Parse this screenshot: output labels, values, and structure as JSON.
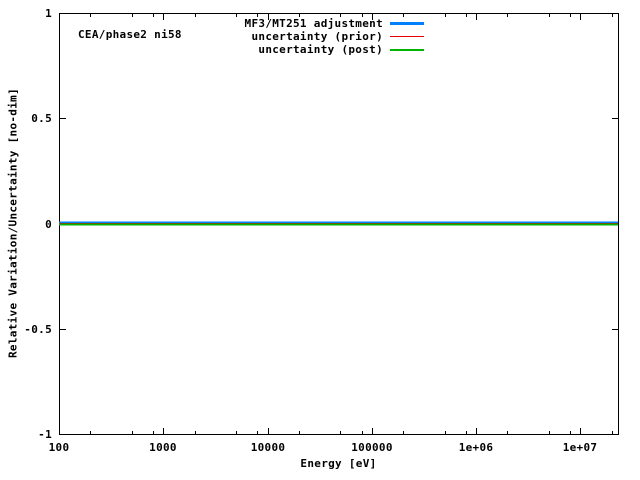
{
  "chart_data": {
    "type": "line",
    "plot_label": "CEA/phase2 ni58",
    "xlabel": "Energy [eV]",
    "ylabel": "Relative Variation/Uncertainty [no-dim]",
    "x_scale": "log",
    "y_scale": "linear",
    "xlim": [
      100,
      23000000
    ],
    "ylim": [
      -1,
      1
    ],
    "x_major_ticks": [
      100,
      1000,
      10000,
      100000,
      1000000,
      10000000
    ],
    "x_tick_labels": [
      "100",
      "1000",
      "10000",
      "100000",
      "1e+06",
      "1e+07"
    ],
    "x_minor_tick_multipliers": [
      2,
      5,
      8
    ],
    "y_major_ticks": [
      1,
      0.5,
      0,
      -0.5,
      -1
    ],
    "y_tick_labels": [
      "1",
      "0.5",
      "0",
      "-0.5",
      "-1"
    ],
    "grid": "off",
    "legend_position": "top-inside",
    "frame_color": "#000000",
    "background_color": "#ffffff",
    "series": [
      {
        "name": "MF3/MT251 adjustment",
        "color": "#0080ff",
        "width": 3,
        "x": [
          100,
          23000000
        ],
        "values": [
          0,
          0
        ]
      },
      {
        "name": "uncertainty (prior)",
        "color": "#e60000",
        "width": 1,
        "x": [
          100,
          23000000
        ],
        "values": [
          0,
          0
        ]
      },
      {
        "name": "uncertainty (post)",
        "color": "#00b400",
        "width": 2,
        "x": [
          100,
          23000000
        ],
        "values": [
          0,
          0
        ]
      }
    ]
  }
}
